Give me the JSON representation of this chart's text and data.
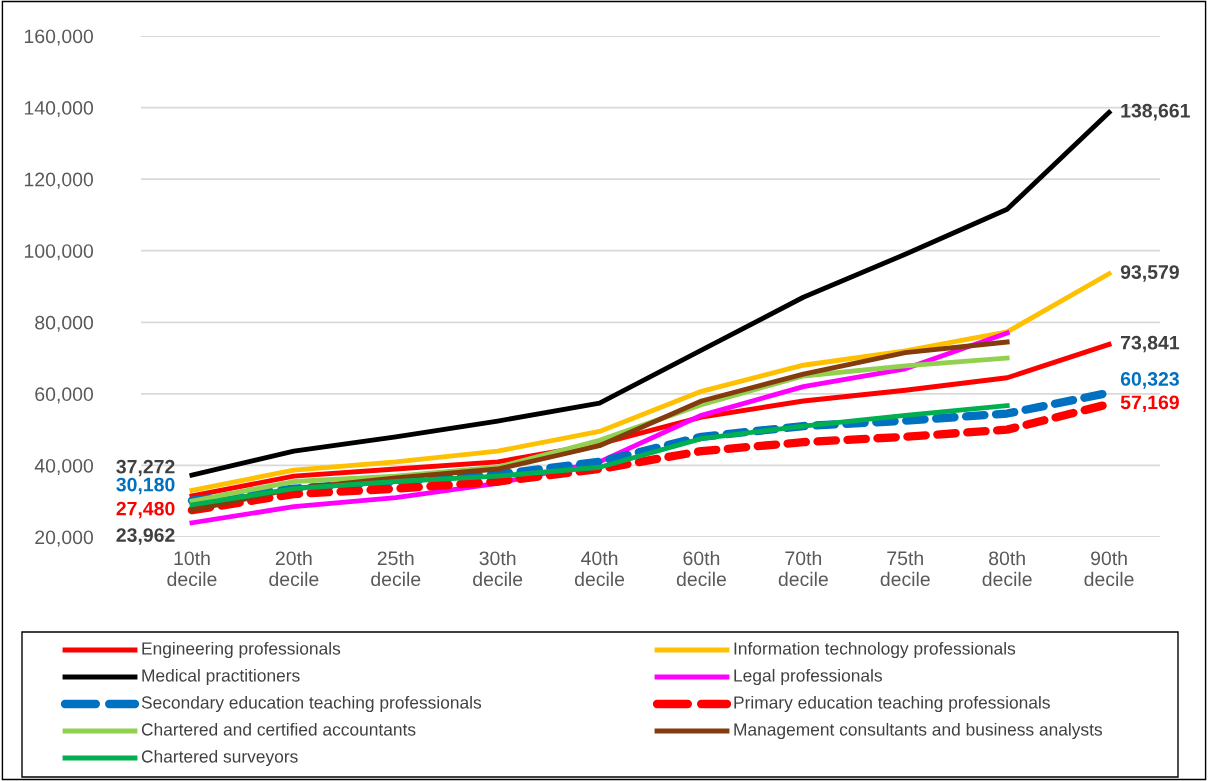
{
  "chart_data": {
    "type": "line",
    "categories": [
      "10th\ndecile",
      "20th\ndecile",
      "25th\ndecile",
      "30th\ndecile",
      "40th\ndecile",
      "60th\ndecile",
      "70th\ndecile",
      "75th\ndecile",
      "80th\ndecile",
      "90th\ndecile"
    ],
    "ylim": [
      20000,
      160000
    ],
    "yticks": [
      {
        "value": 20000,
        "label": "20,000"
      },
      {
        "value": 40000,
        "label": "40,000"
      },
      {
        "value": 60000,
        "label": "60,000"
      },
      {
        "value": 80000,
        "label": "80,000"
      },
      {
        "value": 100000,
        "label": "100,000"
      },
      {
        "value": 120000,
        "label": "120,000"
      },
      {
        "value": 140000,
        "label": "140,000"
      },
      {
        "value": 160000,
        "label": "160,000"
      }
    ],
    "grid": "y",
    "legend": "bottom",
    "marker": "none",
    "series": [
      {
        "name": "Engineering professionals",
        "color": "#ff0000",
        "line_style": "solid",
        "values": [
          31500,
          37000,
          39000,
          41000,
          46000,
          53500,
          58000,
          61000,
          64500,
          73841
        ],
        "value_labels": [
          null,
          null,
          null,
          null,
          null,
          null,
          null,
          null,
          null,
          "73,841"
        ]
      },
      {
        "name": "Information technology professionals",
        "color": "#ffc000",
        "line_style": "solid",
        "values": [
          33000,
          38700,
          41000,
          44000,
          49500,
          60700,
          68000,
          72000,
          77300,
          93579
        ],
        "value_labels": [
          null,
          null,
          null,
          null,
          null,
          null,
          null,
          null,
          null,
          "93,579"
        ]
      },
      {
        "name": "Medical practitioners",
        "color": "#000000",
        "line_style": "solid",
        "values": [
          37272,
          44000,
          48000,
          52400,
          57400,
          72200,
          87000,
          99000,
          111600,
          138661
        ],
        "value_labels": [
          "37,272",
          null,
          null,
          null,
          null,
          null,
          null,
          null,
          null,
          "138,661"
        ]
      },
      {
        "name": "Legal professionals",
        "color": "#ff00ff",
        "line_style": "solid",
        "values": [
          23962,
          28500,
          31000,
          35000,
          41000,
          54000,
          62000,
          67000,
          77000,
          null
        ],
        "value_labels": [
          "23,962",
          null,
          null,
          null,
          null,
          null,
          null,
          null,
          null,
          null
        ]
      },
      {
        "name": "Secondary education teaching professionals",
        "color": "#0070c0",
        "line_style": "dashed",
        "values": [
          30180,
          33500,
          35500,
          37500,
          41000,
          48000,
          51000,
          52500,
          54500,
          60323
        ],
        "value_labels": [
          "30,180",
          null,
          null,
          null,
          null,
          null,
          null,
          null,
          null,
          "60,323"
        ]
      },
      {
        "name": "Primary education teaching professionals",
        "color": "#ff0000",
        "line_style": "dashed",
        "values": [
          27480,
          32000,
          33500,
          35500,
          39000,
          44000,
          46500,
          48000,
          50000,
          57169
        ],
        "value_labels": [
          "27,480",
          null,
          null,
          null,
          null,
          null,
          null,
          null,
          null,
          "57,169"
        ]
      },
      {
        "name": "Chartered and certified accountants",
        "color": "#92d050",
        "line_style": "solid",
        "values": [
          30000,
          35500,
          37000,
          39500,
          47000,
          57000,
          65000,
          67800,
          70000,
          null
        ]
      },
      {
        "name": "Management consultants and business analysts",
        "color": "#843c0c",
        "line_style": "solid",
        "values": [
          27500,
          33500,
          36500,
          39000,
          45500,
          58000,
          65500,
          71500,
          74500,
          null
        ]
      },
      {
        "name": "Chartered surveyors",
        "color": "#00b050",
        "line_style": "solid",
        "values": [
          29000,
          33500,
          35500,
          37000,
          39500,
          47500,
          51000,
          54000,
          56700,
          null
        ]
      }
    ]
  }
}
